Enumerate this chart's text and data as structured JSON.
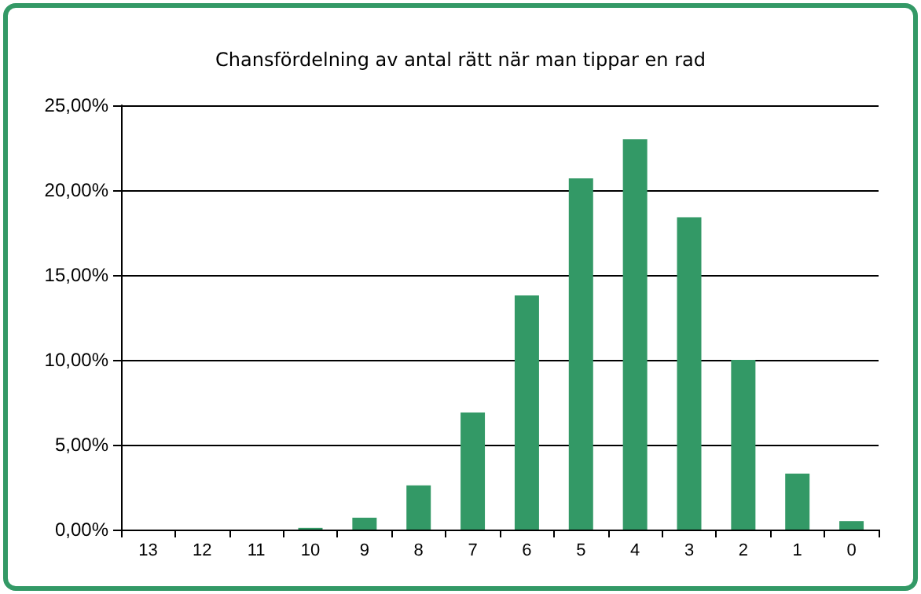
{
  "chart_data": {
    "type": "bar",
    "title": "Chansfördelning av antal rätt när man tippar en rad",
    "categories": [
      "13",
      "12",
      "11",
      "10",
      "9",
      "8",
      "7",
      "6",
      "5",
      "4",
      "3",
      "2",
      "1",
      "0"
    ],
    "values": [
      0.0,
      0.0,
      0.0,
      0.1,
      0.7,
      2.6,
      6.9,
      13.8,
      20.7,
      23.0,
      18.4,
      10.0,
      3.3,
      0.5
    ],
    "color": "#339966",
    "ylim": [
      0,
      25
    ],
    "yticks": [
      {
        "value": 0,
        "label": "0,00%"
      },
      {
        "value": 5,
        "label": "5,00%"
      },
      {
        "value": 10,
        "label": "10,00%"
      },
      {
        "value": 15,
        "label": "15,00%"
      },
      {
        "value": 20,
        "label": "20,00%"
      },
      {
        "value": 25,
        "label": "25,00%"
      }
    ],
    "grid": "y"
  }
}
